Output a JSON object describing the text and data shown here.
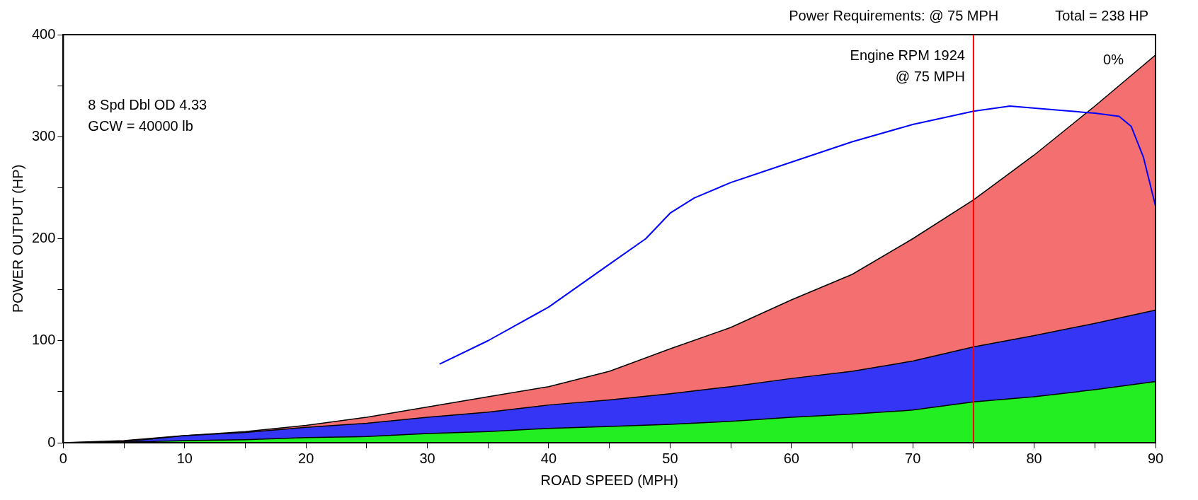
{
  "chart_data": {
    "type": "area",
    "stacked": true,
    "title": "Power Requirements: @ 75 MPH",
    "subtitle": "Total  =  238 HP",
    "xlabel": "ROAD SPEED (MPH)",
    "ylabel": "POWER OUTPUT (HP)",
    "x": [
      0,
      5,
      10,
      15,
      20,
      25,
      30,
      35,
      40,
      45,
      50,
      55,
      60,
      65,
      70,
      75,
      80,
      85,
      90
    ],
    "series": [
      {
        "color": "#22ee22",
        "values": [
          0,
          0.5,
          2,
          3,
          5,
          6,
          9,
          11,
          14,
          16,
          18,
          21,
          25,
          28,
          32,
          40,
          45,
          52,
          60
        ]
      },
      {
        "color": "#3535f5",
        "values": [
          0,
          0.5,
          5,
          7,
          10,
          13,
          16,
          19,
          23,
          26,
          30,
          34,
          38,
          42,
          48,
          54,
          60,
          65,
          70
        ]
      },
      {
        "color": "#f47070",
        "values": [
          0,
          1,
          0,
          1,
          2,
          6,
          10,
          15,
          18,
          28,
          44,
          58,
          77,
          95,
          120,
          144,
          177,
          213,
          250
        ]
      },
      {
        "type": "line",
        "color": "#0000ff",
        "x": [
          31,
          35,
          40,
          45,
          48,
          50,
          52,
          55,
          60,
          65,
          70,
          75,
          78,
          82,
          85,
          87,
          88,
          89,
          90
        ],
        "values": [
          77,
          100,
          133,
          175,
          200,
          225,
          240,
          255,
          275,
          295,
          312,
          325,
          330,
          326,
          323,
          320,
          310,
          280,
          232
        ]
      }
    ],
    "xlim": [
      0,
      90
    ],
    "xticks": [
      0,
      {
        "value": 5,
        "label": null
      },
      10,
      {
        "value": 15,
        "label": null
      },
      20,
      {
        "value": 25,
        "label": null
      },
      30,
      {
        "value": 35,
        "label": null
      },
      40,
      {
        "value": 45,
        "label": null
      },
      50,
      {
        "value": 55,
        "label": null
      },
      60,
      {
        "value": 65,
        "label": null
      },
      70,
      {
        "value": 75,
        "label": null
      },
      80,
      {
        "value": 85,
        "label": null
      },
      90
    ],
    "ylim": [
      0,
      400
    ],
    "yticks": [
      0,
      {
        "value": 50,
        "label": null
      },
      100,
      {
        "value": 150,
        "label": null
      },
      200,
      {
        "value": 250,
        "label": null
      },
      300,
      {
        "value": 350,
        "label": null
      },
      400
    ],
    "grid": false,
    "legend": false,
    "marker": "none",
    "line_style": "solid",
    "ref_lines": [
      {
        "axis": "x",
        "value": 75,
        "label": "Engine RPM 1924\n@ 75 MPH",
        "color": "#ff0000"
      }
    ],
    "annotations": [
      "8 Spd Dbl OD 4.33\nGCW = 40000 lb",
      "0%"
    ]
  }
}
